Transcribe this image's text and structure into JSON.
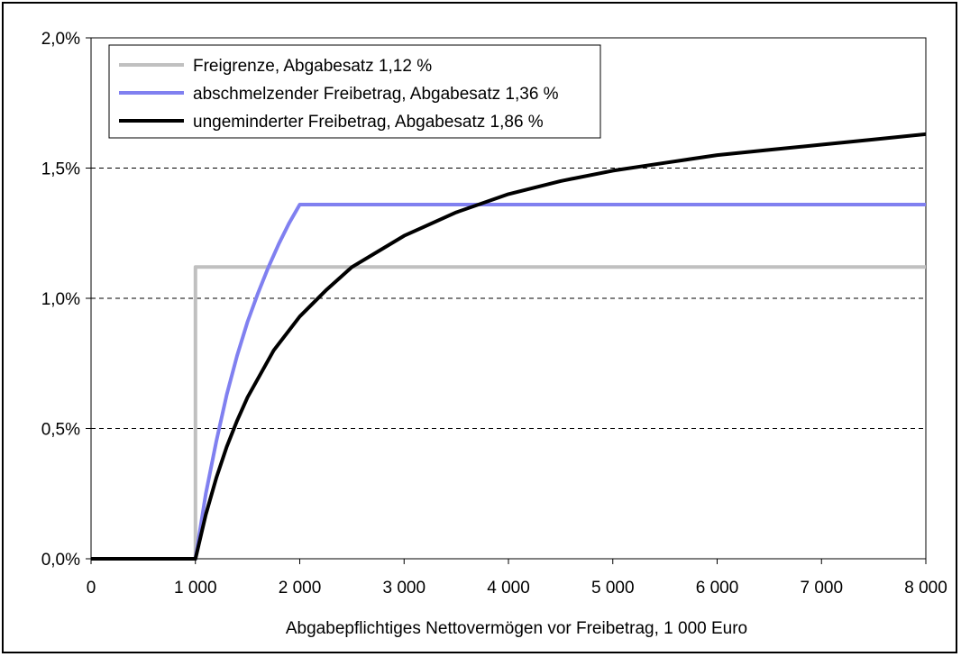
{
  "chart_data": {
    "type": "line",
    "title": "",
    "xlabel": "Abgabepflichtiges Nettovermögen vor Freibetrag, 1 000 Euro",
    "ylabel": "",
    "xlim": [
      0,
      8000
    ],
    "ylim": [
      0,
      2.0
    ],
    "x_ticks": [
      0,
      1000,
      2000,
      3000,
      4000,
      5000,
      6000,
      7000,
      8000
    ],
    "x_tick_labels": [
      "0",
      "1 000",
      "2 000",
      "3 000",
      "4 000",
      "5 000",
      "6 000",
      "7 000",
      "8 000"
    ],
    "y_ticks": [
      0,
      0.5,
      1.0,
      1.5,
      2.0
    ],
    "y_tick_labels": [
      "0,0%",
      "0,5%",
      "1,0%",
      "1,5%",
      "2,0%"
    ],
    "grid": "horizontal-dashed",
    "legend_position": "top-left",
    "series": [
      {
        "name": "Freigrenze, Abgabesatz 1,12 %",
        "color": "#c0c0c0",
        "x": [
          0,
          1000,
          1000,
          8000
        ],
        "y": [
          0,
          0,
          1.12,
          1.12
        ]
      },
      {
        "name": "abschmelzender Freibetrag, Abgabesatz 1,36 %",
        "color": "#8080f0",
        "x": [
          0,
          1000,
          1100,
          1200,
          1300,
          1400,
          1500,
          1600,
          1700,
          1800,
          1900,
          2000,
          8000
        ],
        "y": [
          0,
          0,
          0.25,
          0.45,
          0.63,
          0.78,
          0.91,
          1.02,
          1.12,
          1.21,
          1.29,
          1.36,
          1.36
        ]
      },
      {
        "name": "ungeminderter Freibetrag, Abgabesatz 1,86 %",
        "color": "#000000",
        "x": [
          0,
          1000,
          1100,
          1200,
          1300,
          1400,
          1500,
          1750,
          2000,
          2250,
          2500,
          2750,
          3000,
          3500,
          4000,
          4500,
          5000,
          5500,
          6000,
          6500,
          7000,
          7500,
          8000
        ],
        "y": [
          0,
          0,
          0.17,
          0.31,
          0.43,
          0.53,
          0.62,
          0.8,
          0.93,
          1.03,
          1.12,
          1.18,
          1.24,
          1.33,
          1.4,
          1.45,
          1.49,
          1.52,
          1.55,
          1.57,
          1.59,
          1.61,
          1.63
        ]
      }
    ]
  }
}
